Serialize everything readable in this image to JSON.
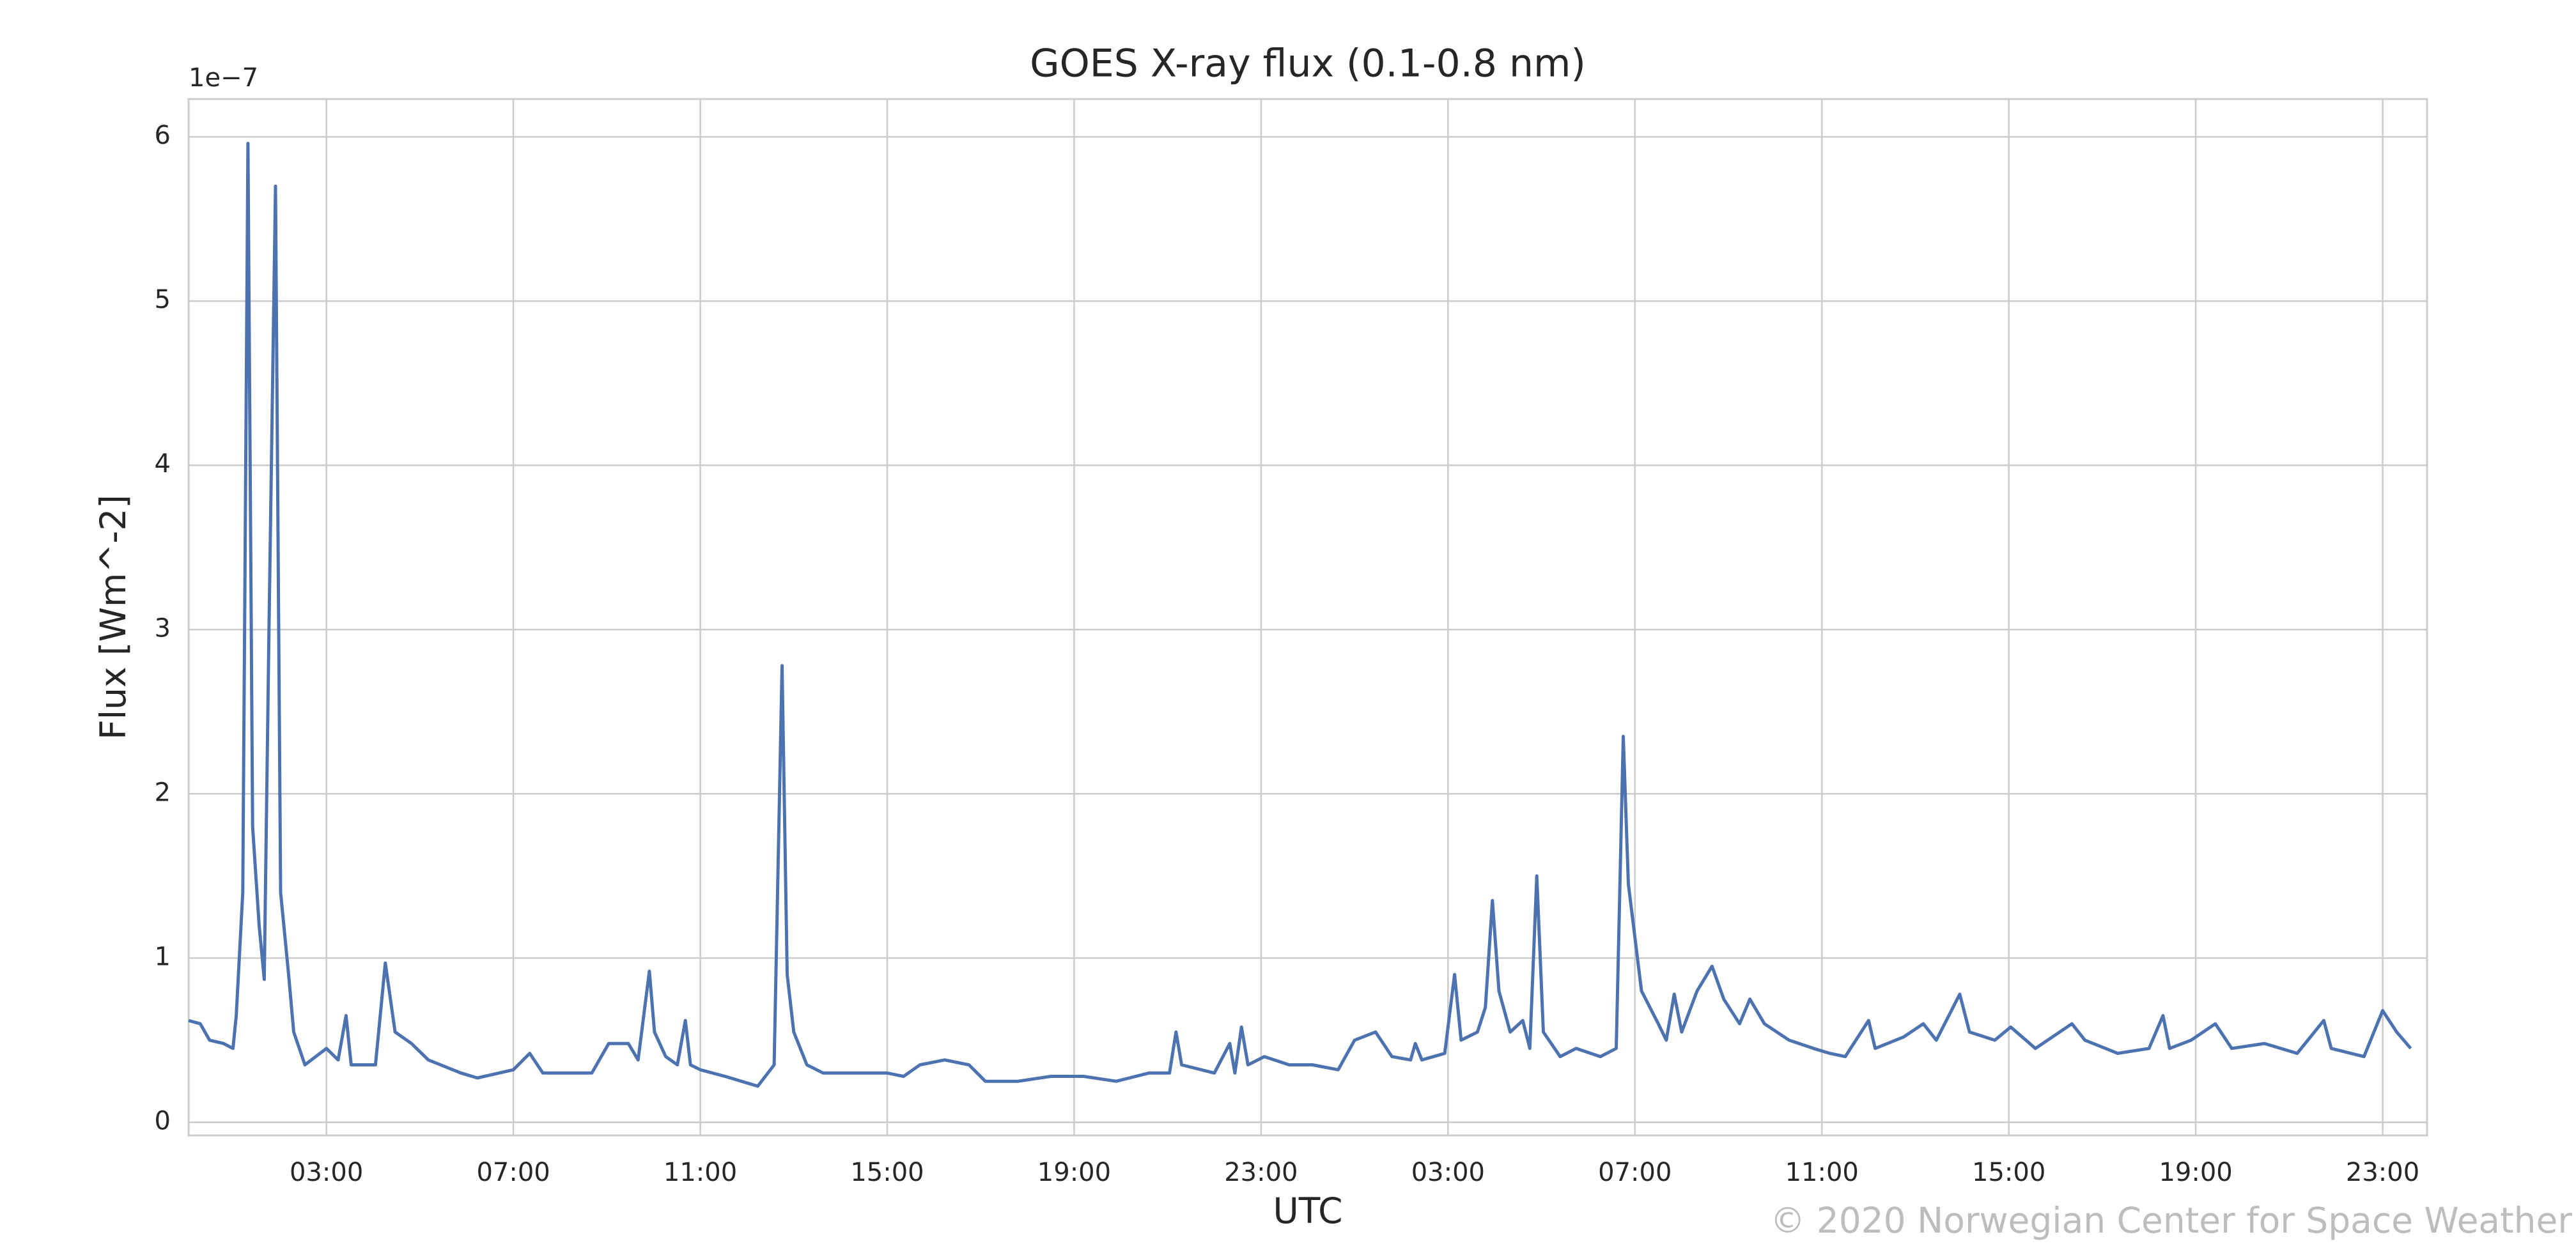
{
  "chart_data": {
    "type": "line",
    "title": "GOES X-ray flux (0.1-0.8 nm)",
    "x_label": "UTC",
    "y_label": "Flux [Wm^-2]",
    "y_offset_label": "1e−7",
    "watermark": "© 2020 Norwegian Center for Space Weather",
    "xlim": [
      0.05,
      47.95
    ],
    "ylim": [
      -0.08,
      6.23
    ],
    "xticks": [
      {
        "value": 3,
        "label": "03:00"
      },
      {
        "value": 7,
        "label": "07:00"
      },
      {
        "value": 11,
        "label": "11:00"
      },
      {
        "value": 15,
        "label": "15:00"
      },
      {
        "value": 19,
        "label": "19:00"
      },
      {
        "value": 23,
        "label": "23:00"
      },
      {
        "value": 27,
        "label": "03:00"
      },
      {
        "value": 31,
        "label": "07:00"
      },
      {
        "value": 35,
        "label": "11:00"
      },
      {
        "value": 39,
        "label": "15:00"
      },
      {
        "value": 43,
        "label": "19:00"
      },
      {
        "value": 47,
        "label": "23:00"
      }
    ],
    "yticks": [
      0,
      1,
      2,
      3,
      4,
      5,
      6
    ],
    "grid": true,
    "series": [
      {
        "name": "Flux",
        "color": "#4c72b0",
        "x": [
          0.05,
          0.3,
          0.5,
          0.8,
          1.0,
          1.07,
          1.21,
          1.32,
          1.42,
          1.56,
          1.67,
          1.77,
          1.91,
          2.02,
          2.19,
          2.3,
          2.54,
          3.0,
          3.25,
          3.42,
          3.53,
          4.05,
          4.26,
          4.47,
          4.82,
          5.18,
          5.88,
          6.23,
          7.0,
          7.35,
          7.63,
          8.16,
          8.68,
          9.04,
          9.46,
          9.67,
          9.91,
          10.02,
          10.26,
          10.51,
          10.68,
          10.79,
          11.0,
          11.53,
          12.23,
          12.58,
          12.75,
          12.86,
          13.0,
          13.28,
          13.63,
          14.3,
          15.0,
          15.35,
          15.7,
          16.23,
          16.75,
          17.1,
          17.8,
          18.5,
          19.2,
          19.9,
          20.6,
          21.04,
          21.18,
          21.3,
          22.0,
          22.33,
          22.44,
          22.58,
          22.72,
          23.07,
          23.6,
          24.1,
          24.65,
          25.0,
          25.45,
          25.8,
          26.2,
          26.3,
          26.44,
          26.93,
          27.14,
          27.28,
          27.63,
          27.8,
          27.95,
          28.09,
          28.33,
          28.6,
          28.75,
          28.9,
          29.04,
          29.4,
          29.74,
          30.26,
          30.6,
          30.75,
          30.86,
          31.14,
          31.5,
          31.67,
          31.84,
          32.0,
          32.33,
          32.65,
          32.9,
          33.24,
          33.46,
          33.77,
          34.3,
          34.82,
          35.17,
          35.5,
          36.0,
          36.14,
          36.75,
          37.17,
          37.45,
          37.95,
          38.16,
          38.7,
          39.04,
          39.57,
          40.35,
          40.63,
          41.33,
          42.0,
          42.3,
          42.44,
          42.9,
          43.42,
          43.77,
          44.47,
          45.17,
          45.74,
          45.9,
          46.6,
          47.0,
          47.3,
          47.6
        ],
        "values": [
          0.62,
          0.6,
          0.5,
          0.48,
          0.45,
          0.65,
          1.4,
          5.96,
          1.8,
          1.2,
          0.87,
          3.0,
          5.7,
          1.4,
          0.9,
          0.55,
          0.35,
          0.45,
          0.38,
          0.65,
          0.35,
          0.35,
          0.97,
          0.55,
          0.48,
          0.38,
          0.3,
          0.27,
          0.32,
          0.42,
          0.3,
          0.3,
          0.3,
          0.48,
          0.48,
          0.38,
          0.92,
          0.55,
          0.4,
          0.35,
          0.62,
          0.35,
          0.32,
          0.28,
          0.22,
          0.35,
          2.78,
          0.9,
          0.55,
          0.35,
          0.3,
          0.3,
          0.3,
          0.28,
          0.35,
          0.38,
          0.35,
          0.25,
          0.25,
          0.28,
          0.28,
          0.25,
          0.3,
          0.3,
          0.55,
          0.35,
          0.3,
          0.48,
          0.3,
          0.58,
          0.35,
          0.4,
          0.35,
          0.35,
          0.32,
          0.5,
          0.55,
          0.4,
          0.38,
          0.48,
          0.38,
          0.42,
          0.9,
          0.5,
          0.55,
          0.7,
          1.35,
          0.8,
          0.55,
          0.62,
          0.45,
          1.5,
          0.55,
          0.4,
          0.45,
          0.4,
          0.45,
          2.35,
          1.45,
          0.8,
          0.6,
          0.5,
          0.78,
          0.55,
          0.8,
          0.95,
          0.75,
          0.6,
          0.75,
          0.6,
          0.5,
          0.45,
          0.42,
          0.4,
          0.62,
          0.45,
          0.52,
          0.6,
          0.5,
          0.78,
          0.55,
          0.5,
          0.58,
          0.45,
          0.6,
          0.5,
          0.42,
          0.45,
          0.65,
          0.45,
          0.5,
          0.6,
          0.45,
          0.48,
          0.42,
          0.62,
          0.45,
          0.4,
          0.68,
          0.55,
          0.45
        ]
      }
    ]
  }
}
